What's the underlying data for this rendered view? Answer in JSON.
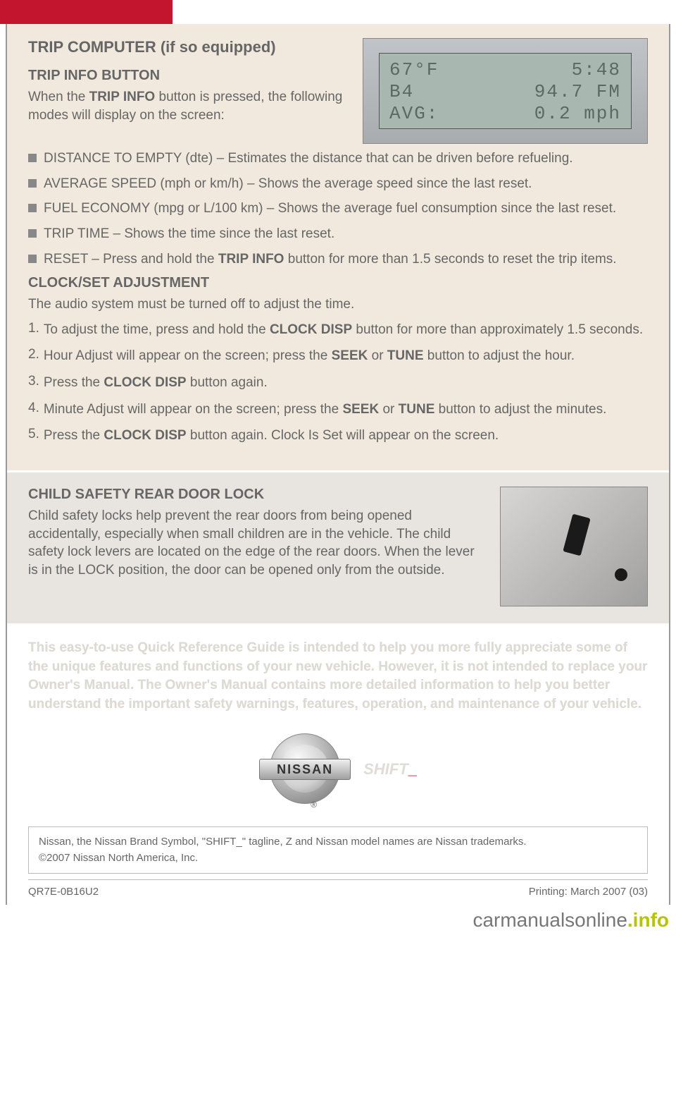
{
  "colors": {
    "redTab": "#c4152e",
    "beigeBg": "#f1e9dd",
    "grayBg": "#e8e4df",
    "textGray": "#666666",
    "bulletGray": "#888888",
    "disclaimerGray": "#ddd9d3"
  },
  "section1": {
    "title": "TRIP COMPUTER (if so equipped)",
    "sub1": "TRIP INFO BUTTON",
    "intro_a": "When the ",
    "intro_b": "TRIP INFO",
    "intro_c": " button is pressed, the following modes will display on the screen:",
    "bullets": [
      {
        "text": "DISTANCE TO EMPTY (dte) – Estimates the distance that can be driven before refueling."
      },
      {
        "text": "AVERAGE SPEED (mph or km/h) – Shows the average speed since the last reset."
      },
      {
        "text": "FUEL ECONOMY (mpg or L/100 km) – Shows the average fuel consumption since the last reset."
      },
      {
        "text": "TRIP TIME – Shows the time since the last reset."
      },
      {
        "a": "RESET – Press and hold the ",
        "b": "TRIP INFO",
        "c": " button for more than 1.5 seconds to reset the trip items."
      }
    ],
    "sub2": "CLOCK/SET ADJUSTMENT",
    "clockIntro": "The audio system must be turned off to adjust the time.",
    "steps": [
      {
        "n": "1.",
        "a": "To adjust the time, press and hold the ",
        "b": "CLOCK DISP",
        "c": " button for more than approximately 1.5 seconds."
      },
      {
        "n": "2.",
        "a": "Hour Adjust will appear on the screen; press the ",
        "b": "SEEK",
        "c": " or ",
        "d": "TUNE",
        "e": " button to adjust the hour."
      },
      {
        "n": "3.",
        "a": "Press the ",
        "b": "CLOCK DISP",
        "c": " button again."
      },
      {
        "n": "4.",
        "a": "Minute Adjust will appear on the screen; press the ",
        "b": "SEEK",
        "c": " or ",
        "d": "TUNE",
        "e": " button to adjust the minutes."
      },
      {
        "n": "5.",
        "a": "Press the ",
        "b": "CLOCK DISP",
        "c": " button again. Clock Is Set will appear on the screen."
      }
    ],
    "display": {
      "row1_left": " 67°F",
      "row1_right": "5:48",
      "row2_left": "B4",
      "row2_right": "94.7 FM",
      "row3_left": "AVG:",
      "row3_right": "0.2 mph"
    }
  },
  "section2": {
    "title": "CHILD SAFETY REAR DOOR LOCK",
    "text": "Child safety locks help prevent the rear doors from being opened accidentally, especially when small children are in the vehicle. The child safety lock levers are located on the edge of the rear doors. When the lever is in the LOCK position, the door can be opened only from the outside."
  },
  "footer": {
    "disclaimer": "This easy-to-use Quick Reference Guide is intended to help you more fully appreciate some of the unique features and functions of your new vehicle. However, it is not intended to replace your Owner's Manual. The Owner's Manual contains more detailed information to help you better understand the important safety warnings, features, operation, and maintenance of your vehicle.",
    "logoText": "NISSAN",
    "reg": "®",
    "shift": "SHIFT",
    "underscore": "_",
    "trademark1": "Nissan, the Nissan Brand Symbol, \"SHIFT_\" tagline, Z and Nissan model names are Nissan trademarks.",
    "trademark2": "©2007 Nissan North America, Inc.",
    "docCode": "QR7E-0B16U2",
    "printing": "Printing: March 2007 (03)"
  },
  "watermark": {
    "part1": "carmanualsonline",
    "part2": ".info"
  }
}
